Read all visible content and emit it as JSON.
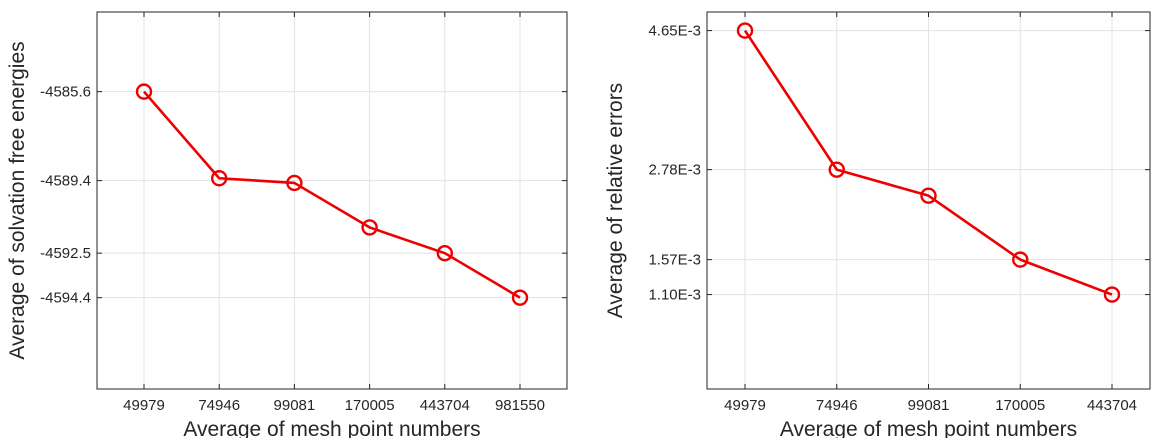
{
  "chart_data": [
    {
      "type": "line",
      "xlabel": "Average of mesh point numbers",
      "ylabel": "Average of solvation free energies",
      "categories": [
        "49979",
        "74946",
        "99081",
        "170005",
        "443704",
        "981550"
      ],
      "yticks": [
        {
          "value": -4585.6,
          "label": "-4585.6"
        },
        {
          "value": -4589.4,
          "label": "-4589.4"
        },
        {
          "value": -4592.5,
          "label": "-4592.5"
        },
        {
          "value": -4594.4,
          "label": "-4594.4"
        }
      ],
      "ylim": [
        -4598.3,
        -4582.2
      ],
      "grid": true,
      "color": "#ee0000",
      "series": [
        {
          "values": [
            -4585.6,
            -4589.3,
            -4589.5,
            -4591.4,
            -4592.5,
            -4594.4
          ]
        }
      ]
    },
    {
      "type": "line",
      "xlabel": "Average of mesh point numbers",
      "ylabel": "Average of relative errors",
      "categories": [
        "49979",
        "74946",
        "99081",
        "170005",
        "443704"
      ],
      "yticks": [
        {
          "value": 0.00465,
          "label": "4.65E-3"
        },
        {
          "value": 0.00278,
          "label": "2.78E-3"
        },
        {
          "value": 0.00157,
          "label": "1.57E-3"
        },
        {
          "value": 0.0011,
          "label": "1.10E-3"
        }
      ],
      "ylim": [
        -0.00017,
        0.0049
      ],
      "grid": true,
      "color": "#ee0000",
      "series": [
        {
          "values": [
            0.00465,
            0.00278,
            0.00243,
            0.00157,
            0.0011
          ]
        }
      ]
    }
  ]
}
